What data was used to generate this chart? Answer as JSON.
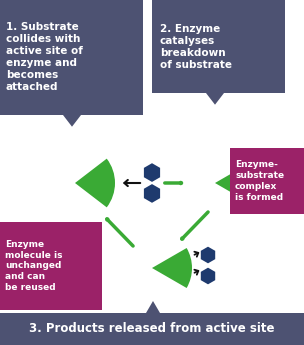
{
  "bg_color": "#ffffff",
  "box1_color": "#4d5272",
  "box2_color": "#4d5272",
  "box3_color": "#4d5272",
  "box_enzyme_color": "#9b2268",
  "enzyme_color": "#3aaa35",
  "substrate_color": "#1e3a6e",
  "arrow_green": "#3aaa35",
  "arrow_black": "#111111",
  "text_white": "#ffffff",
  "text1": "1. Substrate\ncollides with\nactive site of\nenzyme and\nbecomes\nattached",
  "text2": "2. Enzyme\ncatalyses\nbreakdown\nof substrate",
  "text_complex": "Enzyme-\nsubstrate\ncomplex\nis formed",
  "text_reuse": "Enzyme\nmolecule is\nunchanged\nand can\nbe reused",
  "text3": "3. Products released from active site"
}
